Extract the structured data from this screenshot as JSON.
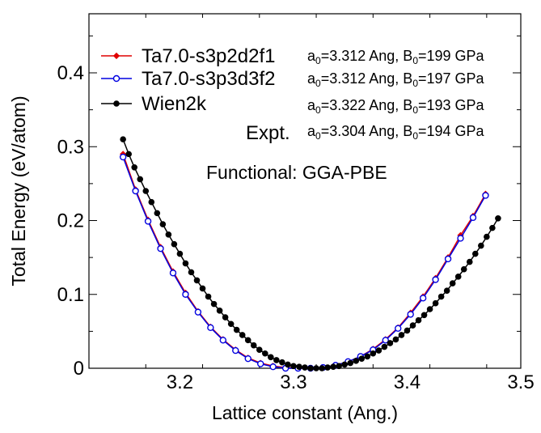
{
  "chart_data": {
    "type": "line",
    "title": "",
    "xlabel": "Lattice constant (Ang.)",
    "ylabel": "Total Energy (eV/atom)",
    "xlim": [
      3.12,
      3.5
    ],
    "ylim": [
      0,
      0.48
    ],
    "xticks": [
      3.2,
      3.3,
      3.4,
      3.5
    ],
    "yticks": [
      0,
      0.1,
      0.2,
      0.3,
      0.4
    ],
    "xtick_labels": [
      "3.2",
      "3.3",
      "3.4",
      "3.5"
    ],
    "ytick_labels": [
      "0",
      "0.1",
      "0.2",
      "0.3",
      "0.4"
    ],
    "grid": false,
    "legend_position": "top-left",
    "annotation": "Functional: GGA-PBE",
    "expt_label": "Expt.",
    "series": [
      {
        "name": "Ta7.0-s3p2d2f1",
        "color": "#e00000",
        "marker": "diamond-filled",
        "a0_value": "3.312",
        "B0_value": "199",
        "points": [
          [
            3.15,
            0.29
          ],
          [
            3.161,
            0.242
          ],
          [
            3.172,
            0.201
          ],
          [
            3.183,
            0.164
          ],
          [
            3.194,
            0.131
          ],
          [
            3.205,
            0.102
          ],
          [
            3.216,
            0.077
          ],
          [
            3.227,
            0.056
          ],
          [
            3.238,
            0.039
          ],
          [
            3.249,
            0.025
          ],
          [
            3.26,
            0.014
          ],
          [
            3.271,
            0.007
          ],
          [
            3.282,
            0.003
          ],
          [
            3.293,
            0.001
          ],
          [
            3.304,
            0.0
          ],
          [
            3.315,
            0.0
          ],
          [
            3.326,
            0.001
          ],
          [
            3.337,
            0.004
          ],
          [
            3.348,
            0.009
          ],
          [
            3.359,
            0.016
          ],
          [
            3.37,
            0.026
          ],
          [
            3.381,
            0.039
          ],
          [
            3.392,
            0.055
          ],
          [
            3.403,
            0.075
          ],
          [
            3.414,
            0.097
          ],
          [
            3.425,
            0.122
          ],
          [
            3.436,
            0.15
          ],
          [
            3.447,
            0.18
          ],
          [
            3.458,
            0.206
          ],
          [
            3.469,
            0.236
          ]
        ]
      },
      {
        "name": "Ta7.0-s3p3d3f2",
        "color": "#0000e0",
        "marker": "circle-open",
        "a0_value": "3.312",
        "B0_value": "197",
        "points": [
          [
            3.15,
            0.286
          ],
          [
            3.161,
            0.24
          ],
          [
            3.172,
            0.199
          ],
          [
            3.183,
            0.162
          ],
          [
            3.194,
            0.129
          ],
          [
            3.205,
            0.1
          ],
          [
            3.216,
            0.076
          ],
          [
            3.227,
            0.055
          ],
          [
            3.238,
            0.038
          ],
          [
            3.249,
            0.024
          ],
          [
            3.26,
            0.013
          ],
          [
            3.271,
            0.006
          ],
          [
            3.282,
            0.002
          ],
          [
            3.293,
            0.0
          ],
          [
            3.304,
            0.0
          ],
          [
            3.315,
            0.0
          ],
          [
            3.326,
            0.001
          ],
          [
            3.337,
            0.004
          ],
          [
            3.348,
            0.009
          ],
          [
            3.359,
            0.016
          ],
          [
            3.37,
            0.025
          ],
          [
            3.381,
            0.038
          ],
          [
            3.392,
            0.054
          ],
          [
            3.403,
            0.073
          ],
          [
            3.414,
            0.095
          ],
          [
            3.425,
            0.12
          ],
          [
            3.436,
            0.148
          ],
          [
            3.447,
            0.176
          ],
          [
            3.458,
            0.204
          ],
          [
            3.469,
            0.234
          ]
        ]
      },
      {
        "name": "Wien2k",
        "color": "#000000",
        "marker": "circle-filled",
        "a0_value": "3.322",
        "B0_value": "193",
        "points": [
          [
            3.15,
            0.31
          ],
          [
            3.155,
            0.29
          ],
          [
            3.16,
            0.272
          ],
          [
            3.165,
            0.256
          ],
          [
            3.17,
            0.24
          ],
          [
            3.175,
            0.225
          ],
          [
            3.18,
            0.21
          ],
          [
            3.185,
            0.195
          ],
          [
            3.19,
            0.181
          ],
          [
            3.195,
            0.168
          ],
          [
            3.2,
            0.155
          ],
          [
            3.205,
            0.142
          ],
          [
            3.21,
            0.13
          ],
          [
            3.215,
            0.119
          ],
          [
            3.22,
            0.108
          ],
          [
            3.225,
            0.097
          ],
          [
            3.23,
            0.087
          ],
          [
            3.235,
            0.078
          ],
          [
            3.24,
            0.069
          ],
          [
            3.245,
            0.06
          ],
          [
            3.25,
            0.052
          ],
          [
            3.255,
            0.045
          ],
          [
            3.26,
            0.038
          ],
          [
            3.265,
            0.031
          ],
          [
            3.27,
            0.025
          ],
          [
            3.275,
            0.02
          ],
          [
            3.28,
            0.015
          ],
          [
            3.285,
            0.011
          ],
          [
            3.29,
            0.008
          ],
          [
            3.295,
            0.005
          ],
          [
            3.3,
            0.003
          ],
          [
            3.305,
            0.002
          ],
          [
            3.31,
            0.001
          ],
          [
            3.315,
            0.0
          ],
          [
            3.32,
            0.0
          ],
          [
            3.325,
            0.0
          ],
          [
            3.33,
            0.001
          ],
          [
            3.335,
            0.002
          ],
          [
            3.34,
            0.003
          ],
          [
            3.345,
            0.005
          ],
          [
            3.35,
            0.007
          ],
          [
            3.355,
            0.01
          ],
          [
            3.36,
            0.013
          ],
          [
            3.365,
            0.016
          ],
          [
            3.37,
            0.02
          ],
          [
            3.375,
            0.024
          ],
          [
            3.38,
            0.029
          ],
          [
            3.385,
            0.034
          ],
          [
            3.39,
            0.039
          ],
          [
            3.395,
            0.045
          ],
          [
            3.4,
            0.051
          ],
          [
            3.405,
            0.058
          ],
          [
            3.41,
            0.065
          ],
          [
            3.415,
            0.072
          ],
          [
            3.42,
            0.08
          ],
          [
            3.425,
            0.088
          ],
          [
            3.43,
            0.097
          ],
          [
            3.435,
            0.105
          ],
          [
            3.44,
            0.115
          ],
          [
            3.445,
            0.124
          ],
          [
            3.45,
            0.134
          ],
          [
            3.455,
            0.144
          ],
          [
            3.46,
            0.155
          ],
          [
            3.465,
            0.166
          ],
          [
            3.47,
            0.178
          ],
          [
            3.475,
            0.19
          ],
          [
            3.48,
            0.203
          ]
        ]
      }
    ],
    "expt": {
      "a0_value": "3.304",
      "B0_value": "194"
    },
    "param_labels": {
      "a0_prefix": "a",
      "a0_sub": "0",
      "a0_suffix": "=",
      "sep": " Ang, ",
      "B0_prefix": "B",
      "B0_sub": "0",
      "B0_suffix": "=",
      "unit": " GPa"
    }
  }
}
